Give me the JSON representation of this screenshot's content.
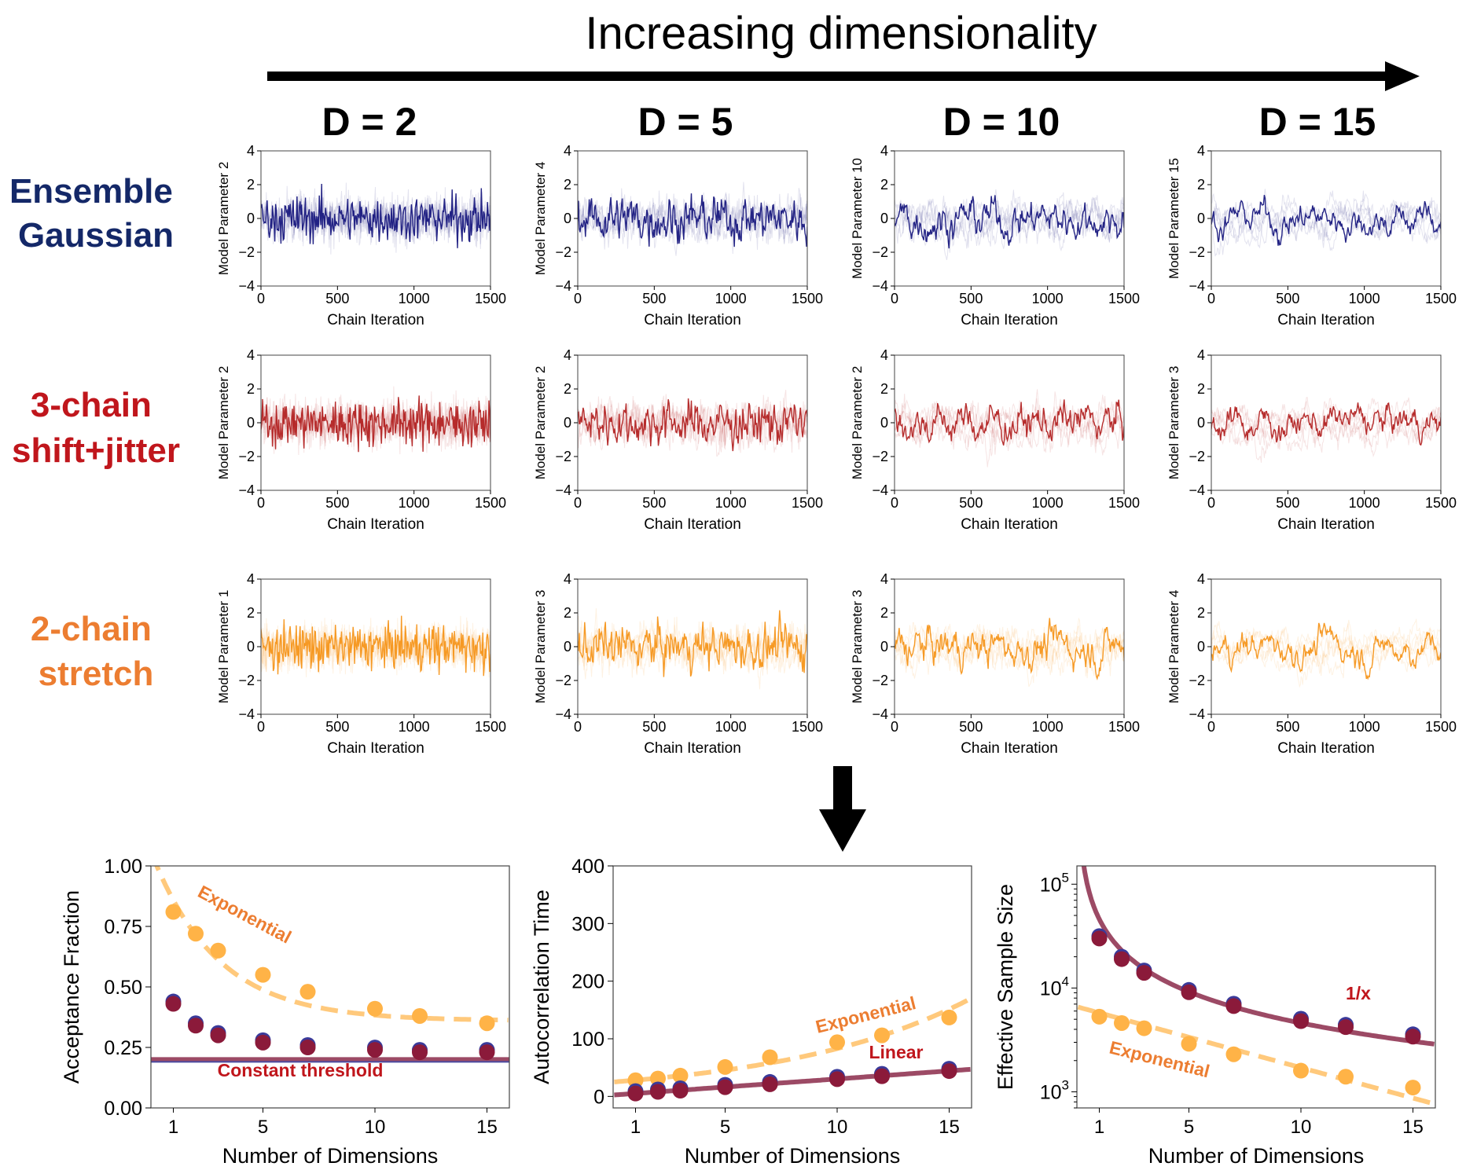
{
  "header": {
    "title": "Increasing dimensionality"
  },
  "columns": [
    "D = 2",
    "D = 5",
    "D = 10",
    "D = 15"
  ],
  "rows": [
    {
      "label": [
        "Ensemble",
        "Gaussian"
      ],
      "color": "#142868",
      "trace": "#18187e"
    },
    {
      "label": [
        "3-chain",
        "shift+jitter"
      ],
      "color": "#c0161c",
      "trace": "#b22222"
    },
    {
      "label": [
        "2-chain",
        "stretch"
      ],
      "color": "#ec7d31",
      "trace": "#f5951a"
    }
  ],
  "trace_axes": {
    "xlabel": "Chain Iteration",
    "xticks": [
      "0",
      "500",
      "1000",
      "1500"
    ],
    "yticks": [
      "4",
      "2",
      "0",
      "−2",
      "−4"
    ],
    "ylabels": [
      [
        "Model Parameter 2",
        "Model Parameter 4",
        "Model Parameter 10",
        "Model Parameter 15"
      ],
      [
        "Model Parameter 2",
        "Model Parameter 2",
        "Model Parameter 2",
        "Model Parameter 3"
      ],
      [
        "Model Parameter 1",
        "Model Parameter 3",
        "Model Parameter 3",
        "Model Parameter 4"
      ]
    ]
  },
  "chart_data": [
    {
      "type": "scatter",
      "xlabel": "Number of Dimensions",
      "ylabel": "Acceptance Fraction",
      "xlim": [
        0,
        16
      ],
      "ylim": [
        0,
        1
      ],
      "xticks": [
        "1",
        "5",
        "10",
        "15"
      ],
      "yticks": [
        "0.00",
        "0.25",
        "0.50",
        "0.75",
        "1.00"
      ],
      "series": [
        {
          "color": "#ffb347",
          "x": [
            1,
            2,
            3,
            5,
            7,
            10,
            12,
            15
          ],
          "y": [
            0.81,
            0.72,
            0.65,
            0.55,
            0.48,
            0.41,
            0.38,
            0.35
          ]
        },
        {
          "color": "#8b1a3a",
          "x": [
            1,
            2,
            3,
            5,
            7,
            10,
            12,
            15
          ],
          "y": [
            0.43,
            0.34,
            0.3,
            0.27,
            0.25,
            0.24,
            0.23,
            0.23
          ]
        }
      ],
      "fits": [
        {
          "name": "Exponential",
          "color": "#ffc36e",
          "dash": true,
          "model": "exp",
          "a": 0.7,
          "b": 0.34,
          "c": 0.36
        },
        {
          "name": "Constant threshold",
          "color": "#8b2a4a",
          "dash": false,
          "model": "const",
          "c": 0.2
        }
      ]
    },
    {
      "type": "scatter",
      "xlabel": "Number of Dimensions",
      "ylabel": "Autocorrelation Time",
      "xlim": [
        0,
        16
      ],
      "ylim": [
        -20,
        400
      ],
      "xticks": [
        "1",
        "5",
        "10",
        "15"
      ],
      "yticks": [
        "0",
        "100",
        "200",
        "300",
        "400"
      ],
      "series": [
        {
          "color": "#ffb347",
          "x": [
            1,
            2,
            3,
            5,
            7,
            10,
            12,
            15
          ],
          "y": [
            28,
            31,
            36,
            51,
            68,
            94,
            106,
            137
          ]
        },
        {
          "color": "#8b1a3a",
          "x": [
            1,
            2,
            3,
            5,
            7,
            10,
            12,
            15
          ],
          "y": [
            5,
            8,
            10,
            16,
            21,
            30,
            35,
            44
          ]
        }
      ],
      "fits": [
        {
          "name": "Exponential",
          "color": "#ffc36e",
          "dash": true,
          "model": "exp",
          "a": 25,
          "b": -0.12,
          "c": 0
        },
        {
          "name": "Linear",
          "color": "#8b2a4a",
          "dash": false,
          "model": "lin",
          "m": 2.8,
          "c": 2.3
        }
      ]
    },
    {
      "type": "scatter",
      "xlabel": "Number of Dimensions",
      "ylabel": "Effective Sample Size",
      "xlim": [
        0,
        16
      ],
      "ylim": [
        700,
        150000
      ],
      "yscale": "log",
      "xticks": [
        "1",
        "5",
        "10",
        "15"
      ],
      "series": [
        {
          "color": "#ffb347",
          "x": [
            1,
            2,
            3,
            5,
            7,
            10,
            12,
            15
          ],
          "y": [
            5300,
            4600,
            4100,
            2900,
            2300,
            1600,
            1400,
            1100
          ]
        },
        {
          "color": "#8b1a3a",
          "x": [
            1,
            2,
            3,
            5,
            7,
            10,
            12,
            15
          ],
          "y": [
            30000,
            19000,
            14000,
            9100,
            6700,
            4800,
            4200,
            3400
          ]
        }
      ],
      "fits": [
        {
          "name": "Exponential",
          "color": "#ffc36e",
          "dash": true,
          "model": "exp",
          "a": 6600,
          "b": 0.135,
          "c": 0
        },
        {
          "name": "1/x",
          "color": "#8b2a4a",
          "dash": false,
          "model": "inv",
          "a": 46000
        }
      ]
    }
  ]
}
